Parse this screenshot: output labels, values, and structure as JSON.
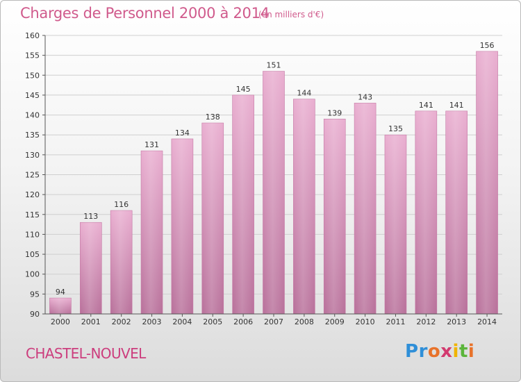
{
  "title": "Charges de Personnel 2000 à 2014",
  "subtitle": "(en milliers d'€)",
  "commune": "CHASTEL-NOUVEL",
  "logo": {
    "text": "Proxiti",
    "colors": [
      "#2f8fd8",
      "#e8722a",
      "#f0b400",
      "#d23a6f",
      "#5bb53b"
    ]
  },
  "colors": {
    "bar": "#d88ab5",
    "bar_light": "#e7a9cb",
    "bar_dark": "#b96e98",
    "grid": "#cfcfcf",
    "title": "#d05a8c"
  },
  "chart_data": {
    "type": "bar",
    "title": "Charges de Personnel 2000 à 2014",
    "subtitle": "(en milliers d'€)",
    "xlabel": "",
    "ylabel": "",
    "categories": [
      "2000",
      "2001",
      "2002",
      "2003",
      "2004",
      "2005",
      "2006",
      "2007",
      "2008",
      "2009",
      "2010",
      "2011",
      "2012",
      "2013",
      "2014"
    ],
    "values": [
      94,
      113,
      116,
      131,
      134,
      138,
      145,
      151,
      144,
      139,
      143,
      135,
      141,
      141,
      156
    ],
    "ylim": [
      90,
      160
    ],
    "yticks": [
      90,
      95,
      100,
      105,
      110,
      115,
      120,
      125,
      130,
      135,
      140,
      145,
      150,
      155,
      160
    ],
    "grid": true,
    "legend": "none"
  }
}
